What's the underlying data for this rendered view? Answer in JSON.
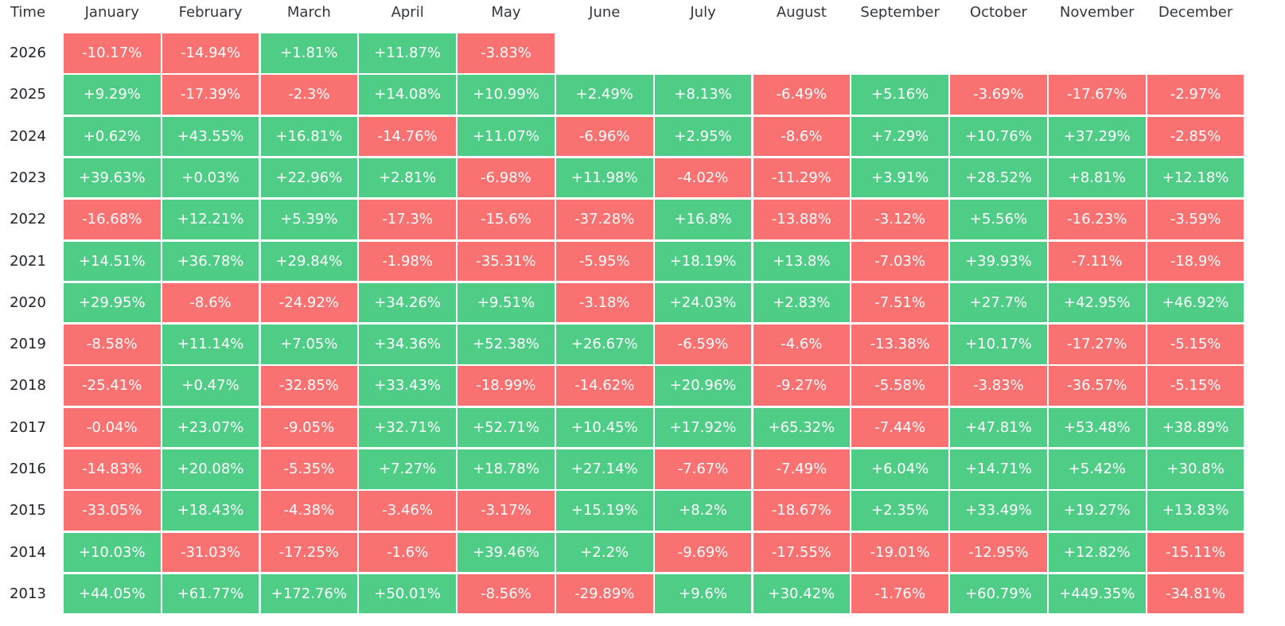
{
  "chart_data": {
    "type": "heatmap",
    "corner_label": "Time",
    "colors": {
      "positive": "#4fcc86",
      "negative": "#fa7171",
      "text": "#ffffff"
    },
    "months": [
      "January",
      "February",
      "March",
      "April",
      "May",
      "June",
      "July",
      "August",
      "September",
      "October",
      "November",
      "December"
    ],
    "rows": [
      {
        "year": "2026",
        "values": [
          "-10.17%",
          "-14.94%",
          "+1.81%",
          "+11.87%",
          "-3.83%",
          "",
          "",
          "",
          "",
          "",
          "",
          ""
        ]
      },
      {
        "year": "2025",
        "values": [
          "+9.29%",
          "-17.39%",
          "-2.3%",
          "+14.08%",
          "+10.99%",
          "+2.49%",
          "+8.13%",
          "-6.49%",
          "+5.16%",
          "-3.69%",
          "-17.67%",
          "-2.97%"
        ]
      },
      {
        "year": "2024",
        "values": [
          "+0.62%",
          "+43.55%",
          "+16.81%",
          "-14.76%",
          "+11.07%",
          "-6.96%",
          "+2.95%",
          "-8.6%",
          "+7.29%",
          "+10.76%",
          "+37.29%",
          "-2.85%"
        ]
      },
      {
        "year": "2023",
        "values": [
          "+39.63%",
          "+0.03%",
          "+22.96%",
          "+2.81%",
          "-6.98%",
          "+11.98%",
          "-4.02%",
          "-11.29%",
          "+3.91%",
          "+28.52%",
          "+8.81%",
          "+12.18%"
        ]
      },
      {
        "year": "2022",
        "values": [
          "-16.68%",
          "+12.21%",
          "+5.39%",
          "-17.3%",
          "-15.6%",
          "-37.28%",
          "+16.8%",
          "-13.88%",
          "-3.12%",
          "+5.56%",
          "-16.23%",
          "-3.59%"
        ]
      },
      {
        "year": "2021",
        "values": [
          "+14.51%",
          "+36.78%",
          "+29.84%",
          "-1.98%",
          "-35.31%",
          "-5.95%",
          "+18.19%",
          "+13.8%",
          "-7.03%",
          "+39.93%",
          "-7.11%",
          "-18.9%"
        ]
      },
      {
        "year": "2020",
        "values": [
          "+29.95%",
          "-8.6%",
          "-24.92%",
          "+34.26%",
          "+9.51%",
          "-3.18%",
          "+24.03%",
          "+2.83%",
          "-7.51%",
          "+27.7%",
          "+42.95%",
          "+46.92%"
        ]
      },
      {
        "year": "2019",
        "values": [
          "-8.58%",
          "+11.14%",
          "+7.05%",
          "+34.36%",
          "+52.38%",
          "+26.67%",
          "-6.59%",
          "-4.6%",
          "-13.38%",
          "+10.17%",
          "-17.27%",
          "-5.15%"
        ]
      },
      {
        "year": "2018",
        "values": [
          "-25.41%",
          "+0.47%",
          "-32.85%",
          "+33.43%",
          "-18.99%",
          "-14.62%",
          "+20.96%",
          "-9.27%",
          "-5.58%",
          "-3.83%",
          "-36.57%",
          "-5.15%"
        ]
      },
      {
        "year": "2017",
        "values": [
          "-0.04%",
          "+23.07%",
          "-9.05%",
          "+32.71%",
          "+52.71%",
          "+10.45%",
          "+17.92%",
          "+65.32%",
          "-7.44%",
          "+47.81%",
          "+53.48%",
          "+38.89%"
        ]
      },
      {
        "year": "2016",
        "values": [
          "-14.83%",
          "+20.08%",
          "-5.35%",
          "+7.27%",
          "+18.78%",
          "+27.14%",
          "-7.67%",
          "-7.49%",
          "+6.04%",
          "+14.71%",
          "+5.42%",
          "+30.8%"
        ]
      },
      {
        "year": "2015",
        "values": [
          "-33.05%",
          "+18.43%",
          "-4.38%",
          "-3.46%",
          "-3.17%",
          "+15.19%",
          "+8.2%",
          "-18.67%",
          "+2.35%",
          "+33.49%",
          "+19.27%",
          "+13.83%"
        ]
      },
      {
        "year": "2014",
        "values": [
          "+10.03%",
          "-31.03%",
          "-17.25%",
          "-1.6%",
          "+39.46%",
          "+2.2%",
          "-9.69%",
          "-17.55%",
          "-19.01%",
          "-12.95%",
          "+12.82%",
          "-15.11%"
        ]
      },
      {
        "year": "2013",
        "values": [
          "+44.05%",
          "+61.77%",
          "+172.76%",
          "+50.01%",
          "-8.56%",
          "-29.89%",
          "+9.6%",
          "+30.42%",
          "-1.76%",
          "+60.79%",
          "+449.35%",
          "-34.81%"
        ]
      }
    ]
  }
}
